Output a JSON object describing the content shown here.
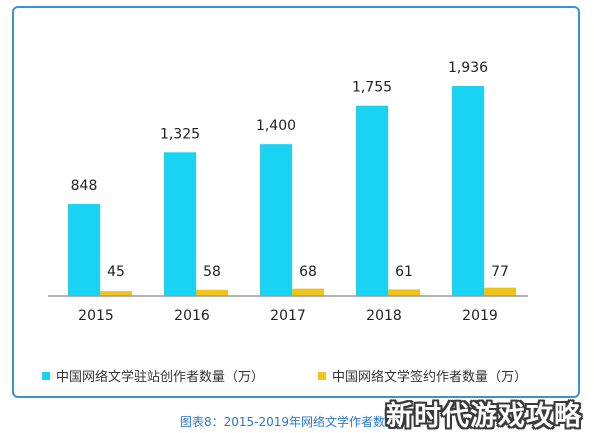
{
  "chart_data": {
    "type": "bar",
    "categories": [
      "2015",
      "2016",
      "2017",
      "2018",
      "2019"
    ],
    "series": [
      {
        "name": "中国网络文学驻站创作者数量（万）",
        "values": [
          848,
          1325,
          1400,
          1755,
          1936
        ],
        "labels": [
          "848",
          "1,325",
          "1,400",
          "1,755",
          "1,936"
        ],
        "color": "#19d3f3"
      },
      {
        "name": "中国网络文学签约作者数量（万）",
        "values": [
          45,
          58,
          68,
          61,
          77
        ],
        "labels": [
          "45",
          "58",
          "68",
          "61",
          "77"
        ],
        "color": "#f0c419"
      }
    ],
    "ylim": [
      0,
      2000
    ],
    "grid": false,
    "legend_position": "bottom",
    "title": "",
    "xlabel": "",
    "ylabel": ""
  },
  "caption": "图表8：2015-2019年网络文学作者数量",
  "watermark": "新时代游戏攻略",
  "colors": {
    "frame": "#3f8fd8",
    "caption": "#2a78c8"
  }
}
